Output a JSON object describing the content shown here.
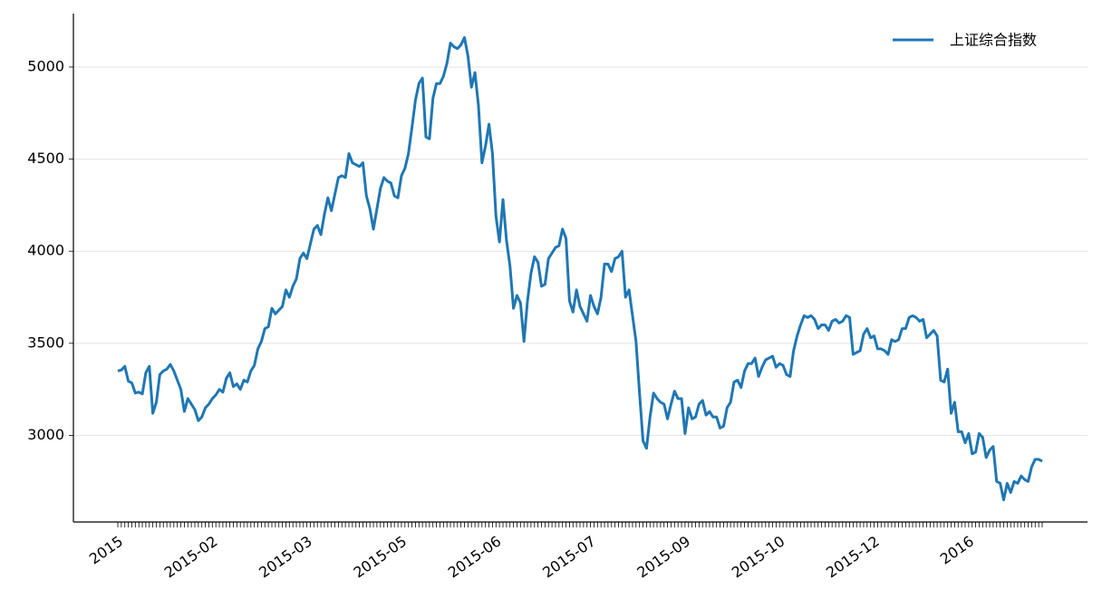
{
  "chart_data": {
    "type": "line",
    "categories": [
      "2015",
      null,
      null,
      null,
      null,
      null,
      null,
      null,
      null,
      null,
      null,
      null,
      null,
      null,
      null,
      null,
      null,
      null,
      null,
      null,
      null,
      null,
      null,
      null,
      null,
      null,
      null,
      "2015-02",
      null,
      null,
      null,
      null,
      null,
      null,
      null,
      null,
      null,
      null,
      null,
      null,
      null,
      null,
      null,
      null,
      null,
      null,
      null,
      null,
      null,
      null,
      null,
      null,
      null,
      null,
      "2015-03",
      null,
      null,
      null,
      null,
      null,
      null,
      null,
      null,
      null,
      null,
      null,
      null,
      null,
      null,
      null,
      null,
      null,
      null,
      null,
      null,
      null,
      null,
      null,
      null,
      null,
      null,
      "2015-05",
      null,
      null,
      null,
      null,
      null,
      null,
      null,
      null,
      null,
      null,
      null,
      null,
      null,
      null,
      null,
      null,
      null,
      null,
      null,
      null,
      null,
      null,
      null,
      null,
      null,
      null,
      "2015-06",
      null,
      null,
      null,
      null,
      null,
      null,
      null,
      null,
      null,
      null,
      null,
      null,
      null,
      null,
      null,
      null,
      null,
      null,
      null,
      null,
      null,
      null,
      null,
      null,
      null,
      null,
      "2015-07",
      null,
      null,
      null,
      null,
      null,
      null,
      null,
      null,
      null,
      null,
      null,
      null,
      null,
      null,
      null,
      null,
      null,
      null,
      null,
      null,
      null,
      null,
      null,
      null,
      null,
      null,
      "2015-09",
      null,
      null,
      null,
      null,
      null,
      null,
      null,
      null,
      null,
      null,
      null,
      null,
      null,
      null,
      null,
      null,
      null,
      null,
      null,
      null,
      null,
      null,
      null,
      null,
      null,
      null,
      "2015-10",
      null,
      null,
      null,
      null,
      null,
      null,
      null,
      null,
      null,
      null,
      null,
      null,
      null,
      null,
      null,
      null,
      null,
      null,
      null,
      null,
      null,
      null,
      null,
      null,
      null,
      null,
      "2015-12",
      null,
      null,
      null,
      null,
      null,
      null,
      null,
      null,
      null,
      null,
      null,
      null,
      null,
      null,
      null,
      null,
      null,
      null,
      null,
      null,
      null,
      null,
      null,
      null,
      null,
      null,
      "2016",
      null,
      null,
      null,
      null,
      null,
      null,
      null,
      null,
      null,
      null,
      null,
      null,
      null,
      null,
      null,
      null,
      null,
      null,
      null,
      null,
      null
    ],
    "series": [
      {
        "name": "上证综合指数",
        "color": "#1f77b4",
        "values": [
          3350,
          3355,
          3375,
          3295,
          3285,
          3230,
          3235,
          3225,
          3340,
          3375,
          3120,
          3180,
          3330,
          3350,
          3360,
          3385,
          3350,
          3300,
          3250,
          3130,
          3200,
          3170,
          3140,
          3080,
          3100,
          3150,
          3170,
          3200,
          3220,
          3250,
          3235,
          3310,
          3340,
          3265,
          3280,
          3250,
          3300,
          3290,
          3350,
          3380,
          3470,
          3510,
          3580,
          3590,
          3690,
          3660,
          3680,
          3700,
          3790,
          3750,
          3810,
          3850,
          3960,
          3990,
          3960,
          4040,
          4120,
          4140,
          4090,
          4200,
          4290,
          4220,
          4310,
          4400,
          4410,
          4400,
          4530,
          4480,
          4470,
          4460,
          4480,
          4300,
          4230,
          4120,
          4230,
          4340,
          4400,
          4380,
          4370,
          4300,
          4290,
          4410,
          4450,
          4530,
          4670,
          4820,
          4910,
          4940,
          4620,
          4610,
          4830,
          4910,
          4910,
          4950,
          5020,
          5130,
          5110,
          5100,
          5120,
          5160,
          5060,
          4890,
          4970,
          4790,
          4480,
          4570,
          4690,
          4530,
          4190,
          4050,
          4280,
          4060,
          3920,
          3690,
          3760,
          3720,
          3510,
          3730,
          3880,
          3970,
          3940,
          3810,
          3820,
          3960,
          3990,
          4020,
          4030,
          4120,
          4070,
          3730,
          3670,
          3790,
          3700,
          3660,
          3620,
          3760,
          3700,
          3660,
          3750,
          3930,
          3930,
          3890,
          3960,
          3970,
          4000,
          3750,
          3790,
          3650,
          3510,
          3230,
          2970,
          2930,
          3100,
          3230,
          3200,
          3180,
          3170,
          3090,
          3170,
          3240,
          3200,
          3200,
          3010,
          3150,
          3090,
          3100,
          3170,
          3190,
          3110,
          3130,
          3100,
          3100,
          3040,
          3050,
          3150,
          3180,
          3290,
          3300,
          3260,
          3350,
          3390,
          3390,
          3420,
          3320,
          3370,
          3410,
          3420,
          3430,
          3370,
          3390,
          3380,
          3330,
          3320,
          3460,
          3540,
          3600,
          3650,
          3640,
          3650,
          3630,
          3580,
          3600,
          3600,
          3570,
          3620,
          3630,
          3610,
          3620,
          3650,
          3640,
          3440,
          3450,
          3460,
          3550,
          3580,
          3530,
          3540,
          3470,
          3470,
          3460,
          3440,
          3520,
          3510,
          3520,
          3580,
          3580,
          3640,
          3650,
          3640,
          3620,
          3630,
          3530,
          3550,
          3570,
          3540,
          3300,
          3290,
          3360,
          3120,
          3180,
          3020,
          3020,
          2960,
          3010,
          2900,
          2910,
          3010,
          2990,
          2880,
          2920,
          2940,
          2750,
          2740,
          2650,
          2740,
          2690,
          2750,
          2740,
          2780,
          2760,
          2750,
          2830,
          2870,
          2870,
          2860
        ]
      }
    ],
    "ylim": [
      2530,
      5290
    ],
    "yticks": [
      3000,
      3500,
      4000,
      4500,
      5000
    ],
    "grid": true,
    "legend": "upper right"
  }
}
